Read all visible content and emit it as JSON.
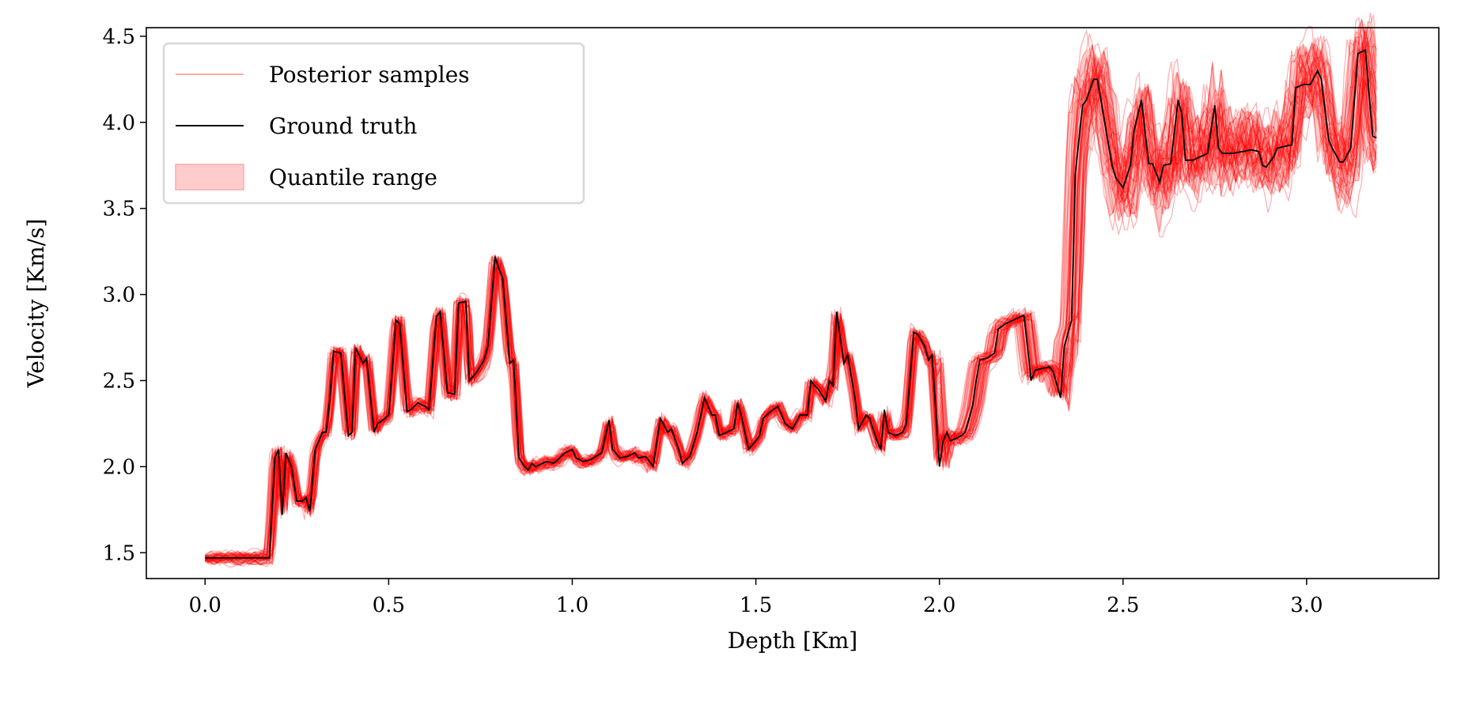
{
  "chart_data": {
    "type": "line",
    "title": "",
    "xlabel": "Depth [Km]",
    "ylabel": "Velocity [Km/s]",
    "xlim": [
      -0.16,
      3.36
    ],
    "ylim": [
      1.35,
      4.55
    ],
    "xticks": [
      0.0,
      0.5,
      1.0,
      1.5,
      2.0,
      2.5,
      3.0
    ],
    "xtick_labels": [
      "0.0",
      "0.5",
      "1.0",
      "1.5",
      "2.0",
      "2.5",
      "3.0"
    ],
    "yticks": [
      1.5,
      2.0,
      2.5,
      3.0,
      3.5,
      4.0,
      4.5
    ],
    "ytick_labels": [
      "1.5",
      "2.0",
      "2.5",
      "3.0",
      "3.5",
      "4.0",
      "4.5"
    ],
    "grid": false,
    "legend": {
      "placement": "top-left",
      "entries": [
        {
          "label": "Posterior samples",
          "style": "line",
          "color": "#ffaaaa"
        },
        {
          "label": "Ground truth",
          "style": "line",
          "color": "#000000"
        },
        {
          "label": "Quantile range",
          "style": "patch",
          "color": "#ffcccc"
        }
      ]
    },
    "colors": {
      "samples": "#ff0000",
      "ground_truth": "#000000",
      "quantile": "#ff0000"
    },
    "series": [
      {
        "name": "Ground truth",
        "x": [
          0,
          0.175,
          0.19,
          0.2,
          0.21,
          0.22,
          0.235,
          0.25,
          0.265,
          0.275,
          0.285,
          0.3,
          0.31,
          0.32,
          0.33,
          0.34,
          0.35,
          0.37,
          0.39,
          0.4,
          0.41,
          0.43,
          0.44,
          0.46,
          0.47,
          0.49,
          0.5,
          0.52,
          0.53,
          0.55,
          0.56,
          0.58,
          0.6,
          0.61,
          0.63,
          0.64,
          0.66,
          0.68,
          0.69,
          0.71,
          0.72,
          0.74,
          0.76,
          0.77,
          0.79,
          0.8,
          0.81,
          0.83,
          0.84,
          0.855,
          0.87,
          0.88,
          0.89,
          0.9,
          0.92,
          0.93,
          0.95,
          0.97,
          0.98,
          1.0,
          1.01,
          1.03,
          1.05,
          1.08,
          1.1,
          1.11,
          1.13,
          1.15,
          1.17,
          1.18,
          1.2,
          1.22,
          1.24,
          1.26,
          1.27,
          1.29,
          1.3,
          1.32,
          1.34,
          1.36,
          1.38,
          1.39,
          1.4,
          1.42,
          1.44,
          1.45,
          1.46,
          1.48,
          1.5,
          1.51,
          1.52,
          1.54,
          1.56,
          1.58,
          1.6,
          1.62,
          1.64,
          1.65,
          1.66,
          1.67,
          1.69,
          1.7,
          1.71,
          1.72,
          1.73,
          1.74,
          1.75,
          1.77,
          1.78,
          1.8,
          1.81,
          1.83,
          1.84,
          1.85,
          1.86,
          1.88,
          1.9,
          1.91,
          1.93,
          1.94,
          1.96,
          1.97,
          1.98,
          2.0,
          2.01,
          2.02,
          2.03,
          2.05,
          2.06,
          2.07,
          2.09,
          2.1,
          2.11,
          2.13,
          2.15,
          2.16,
          2.18,
          2.2,
          2.21,
          2.23,
          2.25,
          2.26,
          2.28,
          2.3,
          2.31,
          2.33,
          2.34,
          2.36,
          2.37,
          2.39,
          2.4,
          2.42,
          2.43,
          2.45,
          2.47,
          2.48,
          2.5,
          2.52,
          2.53,
          2.55,
          2.57,
          2.58,
          2.6,
          2.61,
          2.63,
          2.65,
          2.66,
          2.67,
          2.69,
          2.71,
          2.73,
          2.75,
          2.76,
          2.77,
          2.8,
          2.85,
          2.87,
          2.88,
          2.89,
          2.91,
          2.92,
          2.94,
          2.96,
          2.97,
          2.99,
          3.01,
          3.03,
          3.04,
          3.06,
          3.07,
          3.09,
          3.1,
          3.12,
          3.14,
          3.16,
          3.18,
          3.19
        ],
        "y": [
          1.47,
          1.47,
          2.05,
          2.1,
          1.72,
          2.08,
          2.0,
          1.8,
          1.8,
          1.82,
          1.74,
          2.1,
          2.15,
          2.2,
          2.2,
          2.4,
          2.67,
          2.66,
          2.18,
          2.2,
          2.69,
          2.6,
          2.63,
          2.2,
          2.25,
          2.28,
          2.3,
          2.85,
          2.83,
          2.32,
          2.33,
          2.37,
          2.35,
          2.33,
          2.87,
          2.9,
          2.43,
          2.42,
          2.95,
          2.96,
          2.5,
          2.55,
          2.62,
          2.7,
          3.22,
          3.15,
          3.1,
          2.6,
          2.62,
          2.05,
          2.0,
          1.98,
          2.02,
          2.0,
          2.02,
          2.03,
          2.02,
          2.06,
          2.08,
          2.1,
          2.05,
          2.03,
          2.04,
          2.08,
          2.27,
          2.1,
          2.05,
          2.06,
          2.08,
          2.05,
          2.06,
          2.0,
          2.28,
          2.2,
          2.22,
          2.1,
          2.02,
          2.06,
          2.2,
          2.4,
          2.3,
          2.3,
          2.18,
          2.2,
          2.22,
          2.37,
          2.3,
          2.1,
          2.15,
          2.18,
          2.28,
          2.32,
          2.35,
          2.25,
          2.22,
          2.3,
          2.3,
          2.5,
          2.47,
          2.45,
          2.38,
          2.5,
          2.47,
          2.9,
          2.75,
          2.6,
          2.65,
          2.4,
          2.22,
          2.3,
          2.28,
          2.15,
          2.1,
          2.33,
          2.2,
          2.18,
          2.2,
          2.25,
          2.78,
          2.77,
          2.7,
          2.62,
          2.65,
          2.0,
          2.15,
          2.2,
          2.15,
          2.17,
          2.18,
          2.2,
          2.35,
          2.5,
          2.62,
          2.63,
          2.66,
          2.8,
          2.83,
          2.85,
          2.86,
          2.88,
          2.5,
          2.56,
          2.57,
          2.58,
          2.55,
          2.4,
          2.7,
          2.85,
          3.7,
          4.1,
          4.13,
          4.25,
          4.25,
          4.0,
          3.75,
          3.68,
          3.62,
          3.75,
          3.95,
          4.13,
          3.76,
          3.76,
          3.65,
          3.75,
          3.76,
          4.13,
          4.05,
          3.78,
          3.78,
          3.8,
          3.82,
          4.1,
          3.85,
          3.82,
          3.82,
          3.84,
          3.83,
          3.75,
          3.74,
          3.8,
          3.85,
          3.86,
          3.87,
          4.2,
          4.22,
          4.22,
          4.3,
          4.25,
          3.9,
          3.85,
          3.77,
          3.77,
          3.85,
          4.4,
          4.42,
          3.92,
          3.91
        ]
      }
    ]
  }
}
